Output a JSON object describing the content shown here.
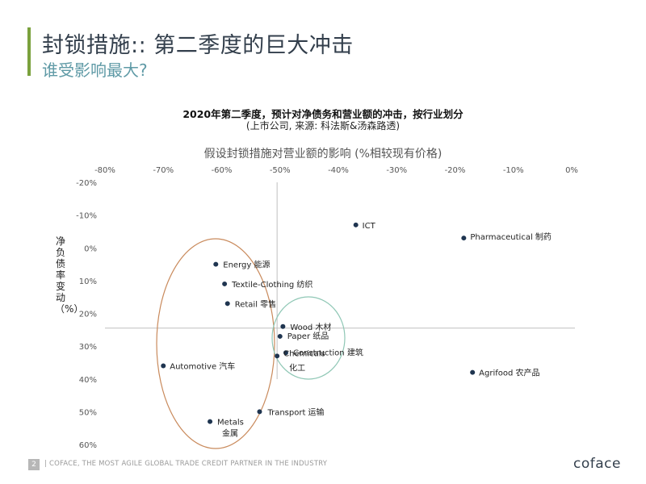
{
  "header": {
    "title": "封锁措施:: 第二季度的巨大冲击",
    "subtitle": "谁受影响最大?"
  },
  "chart_data": {
    "type": "scatter",
    "title": "2020年第二季度，预计对净债务和营业额的冲击，按行业划分",
    "subtitle": "(上市公司, 来源: 科法斯&汤森路透)",
    "xlabel": "假设封锁措施对营业额的影响 (%相较现有价格)",
    "ylabel": "净负债率变动（%）",
    "xlim": [
      -80,
      0
    ],
    "ylim": [
      -20,
      60
    ],
    "y_inverted": true,
    "x_axis_position": "top",
    "x_ticks": [
      "-80%",
      "-70%",
      "-60%",
      "-50%",
      "-40%",
      "-30%",
      "-20%",
      "-10%",
      "0%"
    ],
    "y_ticks": [
      "-20%",
      "-10%",
      "0%",
      "10%",
      "20%",
      "30%",
      "40%",
      "50%",
      "60%"
    ],
    "reference_lines": {
      "x": -50.5,
      "y": 24.5
    },
    "points": [
      {
        "label": "ICT",
        "x": -37,
        "y": -7
      },
      {
        "label": "Pharmaceutical 制药",
        "x": -18.5,
        "y": -3
      },
      {
        "label": "Energy 能源",
        "x": -61,
        "y": 5
      },
      {
        "label": "Textile-Clothing 纺织",
        "x": -59.5,
        "y": 11
      },
      {
        "label": "Retail 零售",
        "x": -59,
        "y": 17
      },
      {
        "label": "Wood 木材",
        "x": -49.5,
        "y": 24
      },
      {
        "label": "Paper 纸品",
        "x": -50,
        "y": 27
      },
      {
        "label": "Construction 建筑",
        "x": -49,
        "y": 32
      },
      {
        "label": "Chemicals 化工",
        "x": -50.5,
        "y": 33
      },
      {
        "label": "Automotive 汽车",
        "x": -70,
        "y": 36
      },
      {
        "label": "Agrifood 农产品",
        "x": -17,
        "y": 38
      },
      {
        "label": "Transport 运输",
        "x": -53.5,
        "y": 50
      },
      {
        "label": "Metals 金属",
        "x": -62,
        "y": 53
      }
    ],
    "colors": {
      "points": "#1f3550",
      "orange_ellipse": "#c98a5c",
      "green_ellipse": "#8fc7b5",
      "axis_lines": "#bfbfbf"
    }
  },
  "footer": {
    "page_number": "2",
    "text": "|  COFACE, THE MOST AGILE GLOBAL TRADE CREDIT PARTNER IN THE INDUSTRY",
    "logo": "coface"
  }
}
